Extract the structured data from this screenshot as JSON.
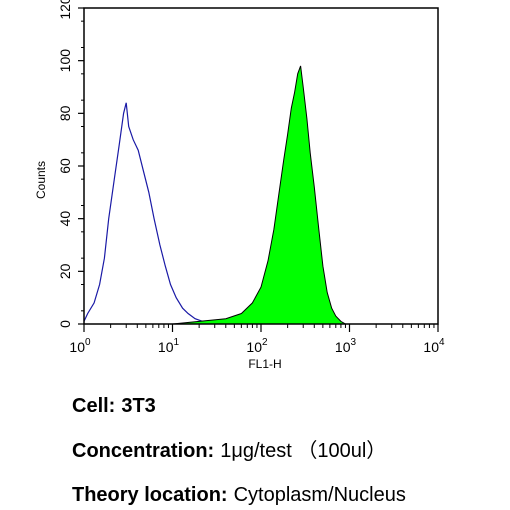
{
  "chart_data": {
    "type": "area",
    "xlabel": "FL1-H",
    "ylabel": "Counts",
    "x_scale": "log",
    "xlim": [
      1,
      10000
    ],
    "ylim": [
      0,
      120
    ],
    "x_ticks": [
      {
        "base": "10",
        "exp": "0"
      },
      {
        "base": "10",
        "exp": "1"
      },
      {
        "base": "10",
        "exp": "2"
      },
      {
        "base": "10",
        "exp": "3"
      },
      {
        "base": "10",
        "exp": "4"
      }
    ],
    "y_ticks": [
      0,
      20,
      40,
      60,
      80,
      100,
      120
    ],
    "series": [
      {
        "style": "outline",
        "color": "#1a1aa6",
        "points": [
          [
            1.0,
            1
          ],
          [
            1.1,
            4
          ],
          [
            1.3,
            8
          ],
          [
            1.5,
            15
          ],
          [
            1.7,
            25
          ],
          [
            1.9,
            40
          ],
          [
            2.2,
            55
          ],
          [
            2.5,
            68
          ],
          [
            2.8,
            80
          ],
          [
            3.0,
            84
          ],
          [
            3.2,
            75
          ],
          [
            3.6,
            70
          ],
          [
            4.1,
            66
          ],
          [
            4.7,
            58
          ],
          [
            5.4,
            50
          ],
          [
            6.2,
            40
          ],
          [
            7.2,
            30
          ],
          [
            8.3,
            22
          ],
          [
            9.5,
            15
          ],
          [
            11,
            10
          ],
          [
            13,
            6
          ],
          [
            15,
            4
          ],
          [
            18,
            2
          ],
          [
            22,
            1
          ],
          [
            30,
            0.5
          ],
          [
            50,
            0
          ]
        ]
      },
      {
        "style": "filled",
        "color": "#00ff00",
        "points": [
          [
            10,
            0
          ],
          [
            20,
            1
          ],
          [
            40,
            2
          ],
          [
            60,
            4
          ],
          [
            80,
            8
          ],
          [
            100,
            14
          ],
          [
            120,
            24
          ],
          [
            140,
            36
          ],
          [
            160,
            50
          ],
          [
            180,
            62
          ],
          [
            200,
            72
          ],
          [
            220,
            82
          ],
          [
            240,
            88
          ],
          [
            260,
            95
          ],
          [
            280,
            98
          ],
          [
            300,
            90
          ],
          [
            330,
            78
          ],
          [
            360,
            65
          ],
          [
            400,
            52
          ],
          [
            450,
            36
          ],
          [
            500,
            22
          ],
          [
            560,
            12
          ],
          [
            630,
            6
          ],
          [
            700,
            3
          ],
          [
            800,
            1
          ],
          [
            900,
            0
          ]
        ]
      }
    ]
  },
  "info": {
    "cell_label": "Cell:",
    "cell_value": "3T3",
    "concentration_label": "Concentration:",
    "concentration_value": "1μg/test （100ul）",
    "theory_label": "Theory location:",
    "theory_value": "Cytoplasm/Nucleus"
  }
}
